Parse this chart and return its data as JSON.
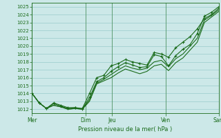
{
  "bg_color": "#cce8e8",
  "grid_color": "#99cccc",
  "line_color": "#1a6b1a",
  "marker_color": "#1a6b1a",
  "xlabel": "Pression niveau de la mer( hPa )",
  "ylim": [
    1011.5,
    1025.5
  ],
  "yticks": [
    1012,
    1013,
    1014,
    1015,
    1016,
    1017,
    1018,
    1019,
    1020,
    1021,
    1022,
    1023,
    1024,
    1025
  ],
  "xtick_labels": [
    "Mer",
    "Dim",
    "Jeu",
    "Ven",
    "Sam"
  ],
  "xtick_positions": [
    0,
    24,
    36,
    60,
    84
  ],
  "vlines": [
    0,
    24,
    36,
    60,
    84
  ],
  "series1": [
    1014.0,
    1012.8,
    1012.1,
    1012.8,
    1012.5,
    1012.2,
    1012.2,
    1012.1,
    1014.0,
    1016.0,
    1016.3,
    1017.5,
    1017.8,
    1018.3,
    1018.0,
    1017.8,
    1017.6,
    1019.2,
    1019.0,
    1018.6,
    1019.8,
    1020.5,
    1021.2,
    1022.2,
    1023.5,
    1024.0,
    1024.8
  ],
  "series2": [
    1014.0,
    1012.8,
    1012.1,
    1012.7,
    1012.4,
    1012.1,
    1012.2,
    1012.0,
    1013.5,
    1015.5,
    1016.0,
    1016.8,
    1017.4,
    1017.9,
    1017.6,
    1017.3,
    1017.4,
    1018.9,
    1018.7,
    1017.5,
    1018.8,
    1019.6,
    1020.2,
    1021.6,
    1023.8,
    1024.3,
    1025.0
  ],
  "series3": [
    1014.0,
    1012.8,
    1012.1,
    1012.5,
    1012.3,
    1012.0,
    1012.1,
    1012.0,
    1013.2,
    1015.3,
    1015.8,
    1016.4,
    1017.0,
    1017.5,
    1017.2,
    1017.0,
    1017.2,
    1018.0,
    1018.2,
    1017.4,
    1018.4,
    1019.0,
    1020.0,
    1021.0,
    1023.3,
    1023.9,
    1024.6
  ],
  "series4": [
    1014.0,
    1012.8,
    1012.1,
    1012.5,
    1012.3,
    1012.0,
    1012.1,
    1012.0,
    1013.0,
    1015.2,
    1015.6,
    1016.0,
    1016.6,
    1017.1,
    1016.8,
    1016.5,
    1016.8,
    1017.5,
    1017.7,
    1016.9,
    1017.9,
    1018.5,
    1019.5,
    1020.5,
    1023.0,
    1023.7,
    1024.4
  ],
  "n_points": 27,
  "x_total": 84
}
